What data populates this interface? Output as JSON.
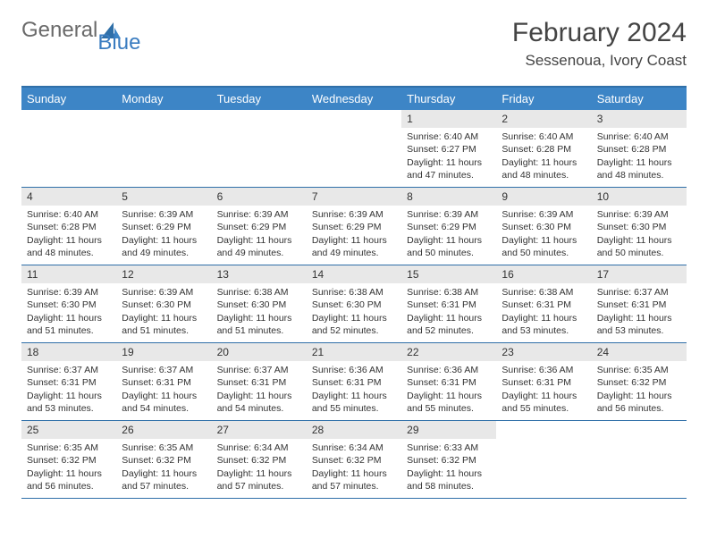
{
  "logo": {
    "part1": "General",
    "part2": "Blue"
  },
  "title": "February 2024",
  "location": "Sessenoua, Ivory Coast",
  "colors": {
    "header_bar": "#3d85c6",
    "border": "#2f6fa8",
    "daynum_bg": "#e8e8e8",
    "logo_blue": "#3a7cc0",
    "text": "#333333"
  },
  "weekdays": [
    "Sunday",
    "Monday",
    "Tuesday",
    "Wednesday",
    "Thursday",
    "Friday",
    "Saturday"
  ],
  "weeks": [
    [
      {
        "n": "",
        "sunrise": "",
        "sunset": "",
        "daylight": ""
      },
      {
        "n": "",
        "sunrise": "",
        "sunset": "",
        "daylight": ""
      },
      {
        "n": "",
        "sunrise": "",
        "sunset": "",
        "daylight": ""
      },
      {
        "n": "",
        "sunrise": "",
        "sunset": "",
        "daylight": ""
      },
      {
        "n": "1",
        "sunrise": "Sunrise: 6:40 AM",
        "sunset": "Sunset: 6:27 PM",
        "daylight": "Daylight: 11 hours and 47 minutes."
      },
      {
        "n": "2",
        "sunrise": "Sunrise: 6:40 AM",
        "sunset": "Sunset: 6:28 PM",
        "daylight": "Daylight: 11 hours and 48 minutes."
      },
      {
        "n": "3",
        "sunrise": "Sunrise: 6:40 AM",
        "sunset": "Sunset: 6:28 PM",
        "daylight": "Daylight: 11 hours and 48 minutes."
      }
    ],
    [
      {
        "n": "4",
        "sunrise": "Sunrise: 6:40 AM",
        "sunset": "Sunset: 6:28 PM",
        "daylight": "Daylight: 11 hours and 48 minutes."
      },
      {
        "n": "5",
        "sunrise": "Sunrise: 6:39 AM",
        "sunset": "Sunset: 6:29 PM",
        "daylight": "Daylight: 11 hours and 49 minutes."
      },
      {
        "n": "6",
        "sunrise": "Sunrise: 6:39 AM",
        "sunset": "Sunset: 6:29 PM",
        "daylight": "Daylight: 11 hours and 49 minutes."
      },
      {
        "n": "7",
        "sunrise": "Sunrise: 6:39 AM",
        "sunset": "Sunset: 6:29 PM",
        "daylight": "Daylight: 11 hours and 49 minutes."
      },
      {
        "n": "8",
        "sunrise": "Sunrise: 6:39 AM",
        "sunset": "Sunset: 6:29 PM",
        "daylight": "Daylight: 11 hours and 50 minutes."
      },
      {
        "n": "9",
        "sunrise": "Sunrise: 6:39 AM",
        "sunset": "Sunset: 6:30 PM",
        "daylight": "Daylight: 11 hours and 50 minutes."
      },
      {
        "n": "10",
        "sunrise": "Sunrise: 6:39 AM",
        "sunset": "Sunset: 6:30 PM",
        "daylight": "Daylight: 11 hours and 50 minutes."
      }
    ],
    [
      {
        "n": "11",
        "sunrise": "Sunrise: 6:39 AM",
        "sunset": "Sunset: 6:30 PM",
        "daylight": "Daylight: 11 hours and 51 minutes."
      },
      {
        "n": "12",
        "sunrise": "Sunrise: 6:39 AM",
        "sunset": "Sunset: 6:30 PM",
        "daylight": "Daylight: 11 hours and 51 minutes."
      },
      {
        "n": "13",
        "sunrise": "Sunrise: 6:38 AM",
        "sunset": "Sunset: 6:30 PM",
        "daylight": "Daylight: 11 hours and 51 minutes."
      },
      {
        "n": "14",
        "sunrise": "Sunrise: 6:38 AM",
        "sunset": "Sunset: 6:30 PM",
        "daylight": "Daylight: 11 hours and 52 minutes."
      },
      {
        "n": "15",
        "sunrise": "Sunrise: 6:38 AM",
        "sunset": "Sunset: 6:31 PM",
        "daylight": "Daylight: 11 hours and 52 minutes."
      },
      {
        "n": "16",
        "sunrise": "Sunrise: 6:38 AM",
        "sunset": "Sunset: 6:31 PM",
        "daylight": "Daylight: 11 hours and 53 minutes."
      },
      {
        "n": "17",
        "sunrise": "Sunrise: 6:37 AM",
        "sunset": "Sunset: 6:31 PM",
        "daylight": "Daylight: 11 hours and 53 minutes."
      }
    ],
    [
      {
        "n": "18",
        "sunrise": "Sunrise: 6:37 AM",
        "sunset": "Sunset: 6:31 PM",
        "daylight": "Daylight: 11 hours and 53 minutes."
      },
      {
        "n": "19",
        "sunrise": "Sunrise: 6:37 AM",
        "sunset": "Sunset: 6:31 PM",
        "daylight": "Daylight: 11 hours and 54 minutes."
      },
      {
        "n": "20",
        "sunrise": "Sunrise: 6:37 AM",
        "sunset": "Sunset: 6:31 PM",
        "daylight": "Daylight: 11 hours and 54 minutes."
      },
      {
        "n": "21",
        "sunrise": "Sunrise: 6:36 AM",
        "sunset": "Sunset: 6:31 PM",
        "daylight": "Daylight: 11 hours and 55 minutes."
      },
      {
        "n": "22",
        "sunrise": "Sunrise: 6:36 AM",
        "sunset": "Sunset: 6:31 PM",
        "daylight": "Daylight: 11 hours and 55 minutes."
      },
      {
        "n": "23",
        "sunrise": "Sunrise: 6:36 AM",
        "sunset": "Sunset: 6:31 PM",
        "daylight": "Daylight: 11 hours and 55 minutes."
      },
      {
        "n": "24",
        "sunrise": "Sunrise: 6:35 AM",
        "sunset": "Sunset: 6:32 PM",
        "daylight": "Daylight: 11 hours and 56 minutes."
      }
    ],
    [
      {
        "n": "25",
        "sunrise": "Sunrise: 6:35 AM",
        "sunset": "Sunset: 6:32 PM",
        "daylight": "Daylight: 11 hours and 56 minutes."
      },
      {
        "n": "26",
        "sunrise": "Sunrise: 6:35 AM",
        "sunset": "Sunset: 6:32 PM",
        "daylight": "Daylight: 11 hours and 57 minutes."
      },
      {
        "n": "27",
        "sunrise": "Sunrise: 6:34 AM",
        "sunset": "Sunset: 6:32 PM",
        "daylight": "Daylight: 11 hours and 57 minutes."
      },
      {
        "n": "28",
        "sunrise": "Sunrise: 6:34 AM",
        "sunset": "Sunset: 6:32 PM",
        "daylight": "Daylight: 11 hours and 57 minutes."
      },
      {
        "n": "29",
        "sunrise": "Sunrise: 6:33 AM",
        "sunset": "Sunset: 6:32 PM",
        "daylight": "Daylight: 11 hours and 58 minutes."
      },
      {
        "n": "",
        "sunrise": "",
        "sunset": "",
        "daylight": ""
      },
      {
        "n": "",
        "sunrise": "",
        "sunset": "",
        "daylight": ""
      }
    ]
  ]
}
